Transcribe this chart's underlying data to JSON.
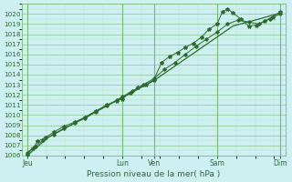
{
  "xlabel": "Pression niveau de la mer( hPa )",
  "bg_color": "#cef0f0",
  "grid_major_color": "#7ab87a",
  "grid_minor_color": "#a8d8a8",
  "line_color": "#2d6a2d",
  "xlim": [
    0,
    100
  ],
  "ylim": [
    1006,
    1021
  ],
  "yticks": [
    1006,
    1007,
    1008,
    1009,
    1010,
    1011,
    1012,
    1013,
    1014,
    1015,
    1016,
    1017,
    1018,
    1019,
    1020
  ],
  "xtick_positions": [
    2,
    38,
    50,
    74,
    98
  ],
  "xtick_labels": [
    "Jeu",
    "Lun",
    "Ven",
    "Sam",
    "Dim"
  ],
  "vline_positions": [
    2,
    38,
    50,
    74,
    98
  ],
  "line1_x": [
    2,
    4,
    6,
    9,
    12,
    16,
    20,
    24,
    28,
    32,
    36,
    38,
    41,
    44,
    47,
    50,
    53,
    56,
    59,
    62,
    65,
    68,
    71,
    74,
    76,
    78,
    80,
    83,
    86,
    89,
    92,
    95,
    98
  ],
  "line1_y": [
    1006.1,
    1006.7,
    1007.4,
    1007.8,
    1008.3,
    1008.9,
    1009.3,
    1009.8,
    1010.4,
    1011.0,
    1011.4,
    1011.6,
    1012.2,
    1012.7,
    1013.0,
    1013.5,
    1015.2,
    1015.8,
    1016.2,
    1016.7,
    1017.1,
    1017.7,
    1018.5,
    1019.0,
    1020.2,
    1020.5,
    1020.1,
    1019.5,
    1018.8,
    1018.9,
    1019.3,
    1019.7,
    1020.2
  ],
  "line2_x": [
    2,
    5,
    8,
    12,
    16,
    20,
    24,
    28,
    32,
    36,
    38,
    42,
    46,
    50,
    54,
    58,
    62,
    66,
    70,
    74,
    78,
    82,
    86,
    90,
    94,
    98
  ],
  "line2_y": [
    1006.3,
    1006.9,
    1007.5,
    1008.1,
    1008.7,
    1009.2,
    1009.7,
    1010.3,
    1010.9,
    1011.5,
    1011.8,
    1012.4,
    1013.0,
    1013.6,
    1014.5,
    1015.2,
    1016.0,
    1016.8,
    1017.5,
    1018.2,
    1019.0,
    1019.4,
    1019.2,
    1019.0,
    1019.5,
    1020.0
  ],
  "line3_x": [
    2,
    10,
    20,
    30,
    40,
    50,
    60,
    70,
    80,
    90,
    98
  ],
  "line3_y": [
    1006.0,
    1007.8,
    1009.2,
    1010.6,
    1012.0,
    1013.4,
    1015.2,
    1017.0,
    1018.8,
    1019.5,
    1020.1
  ]
}
